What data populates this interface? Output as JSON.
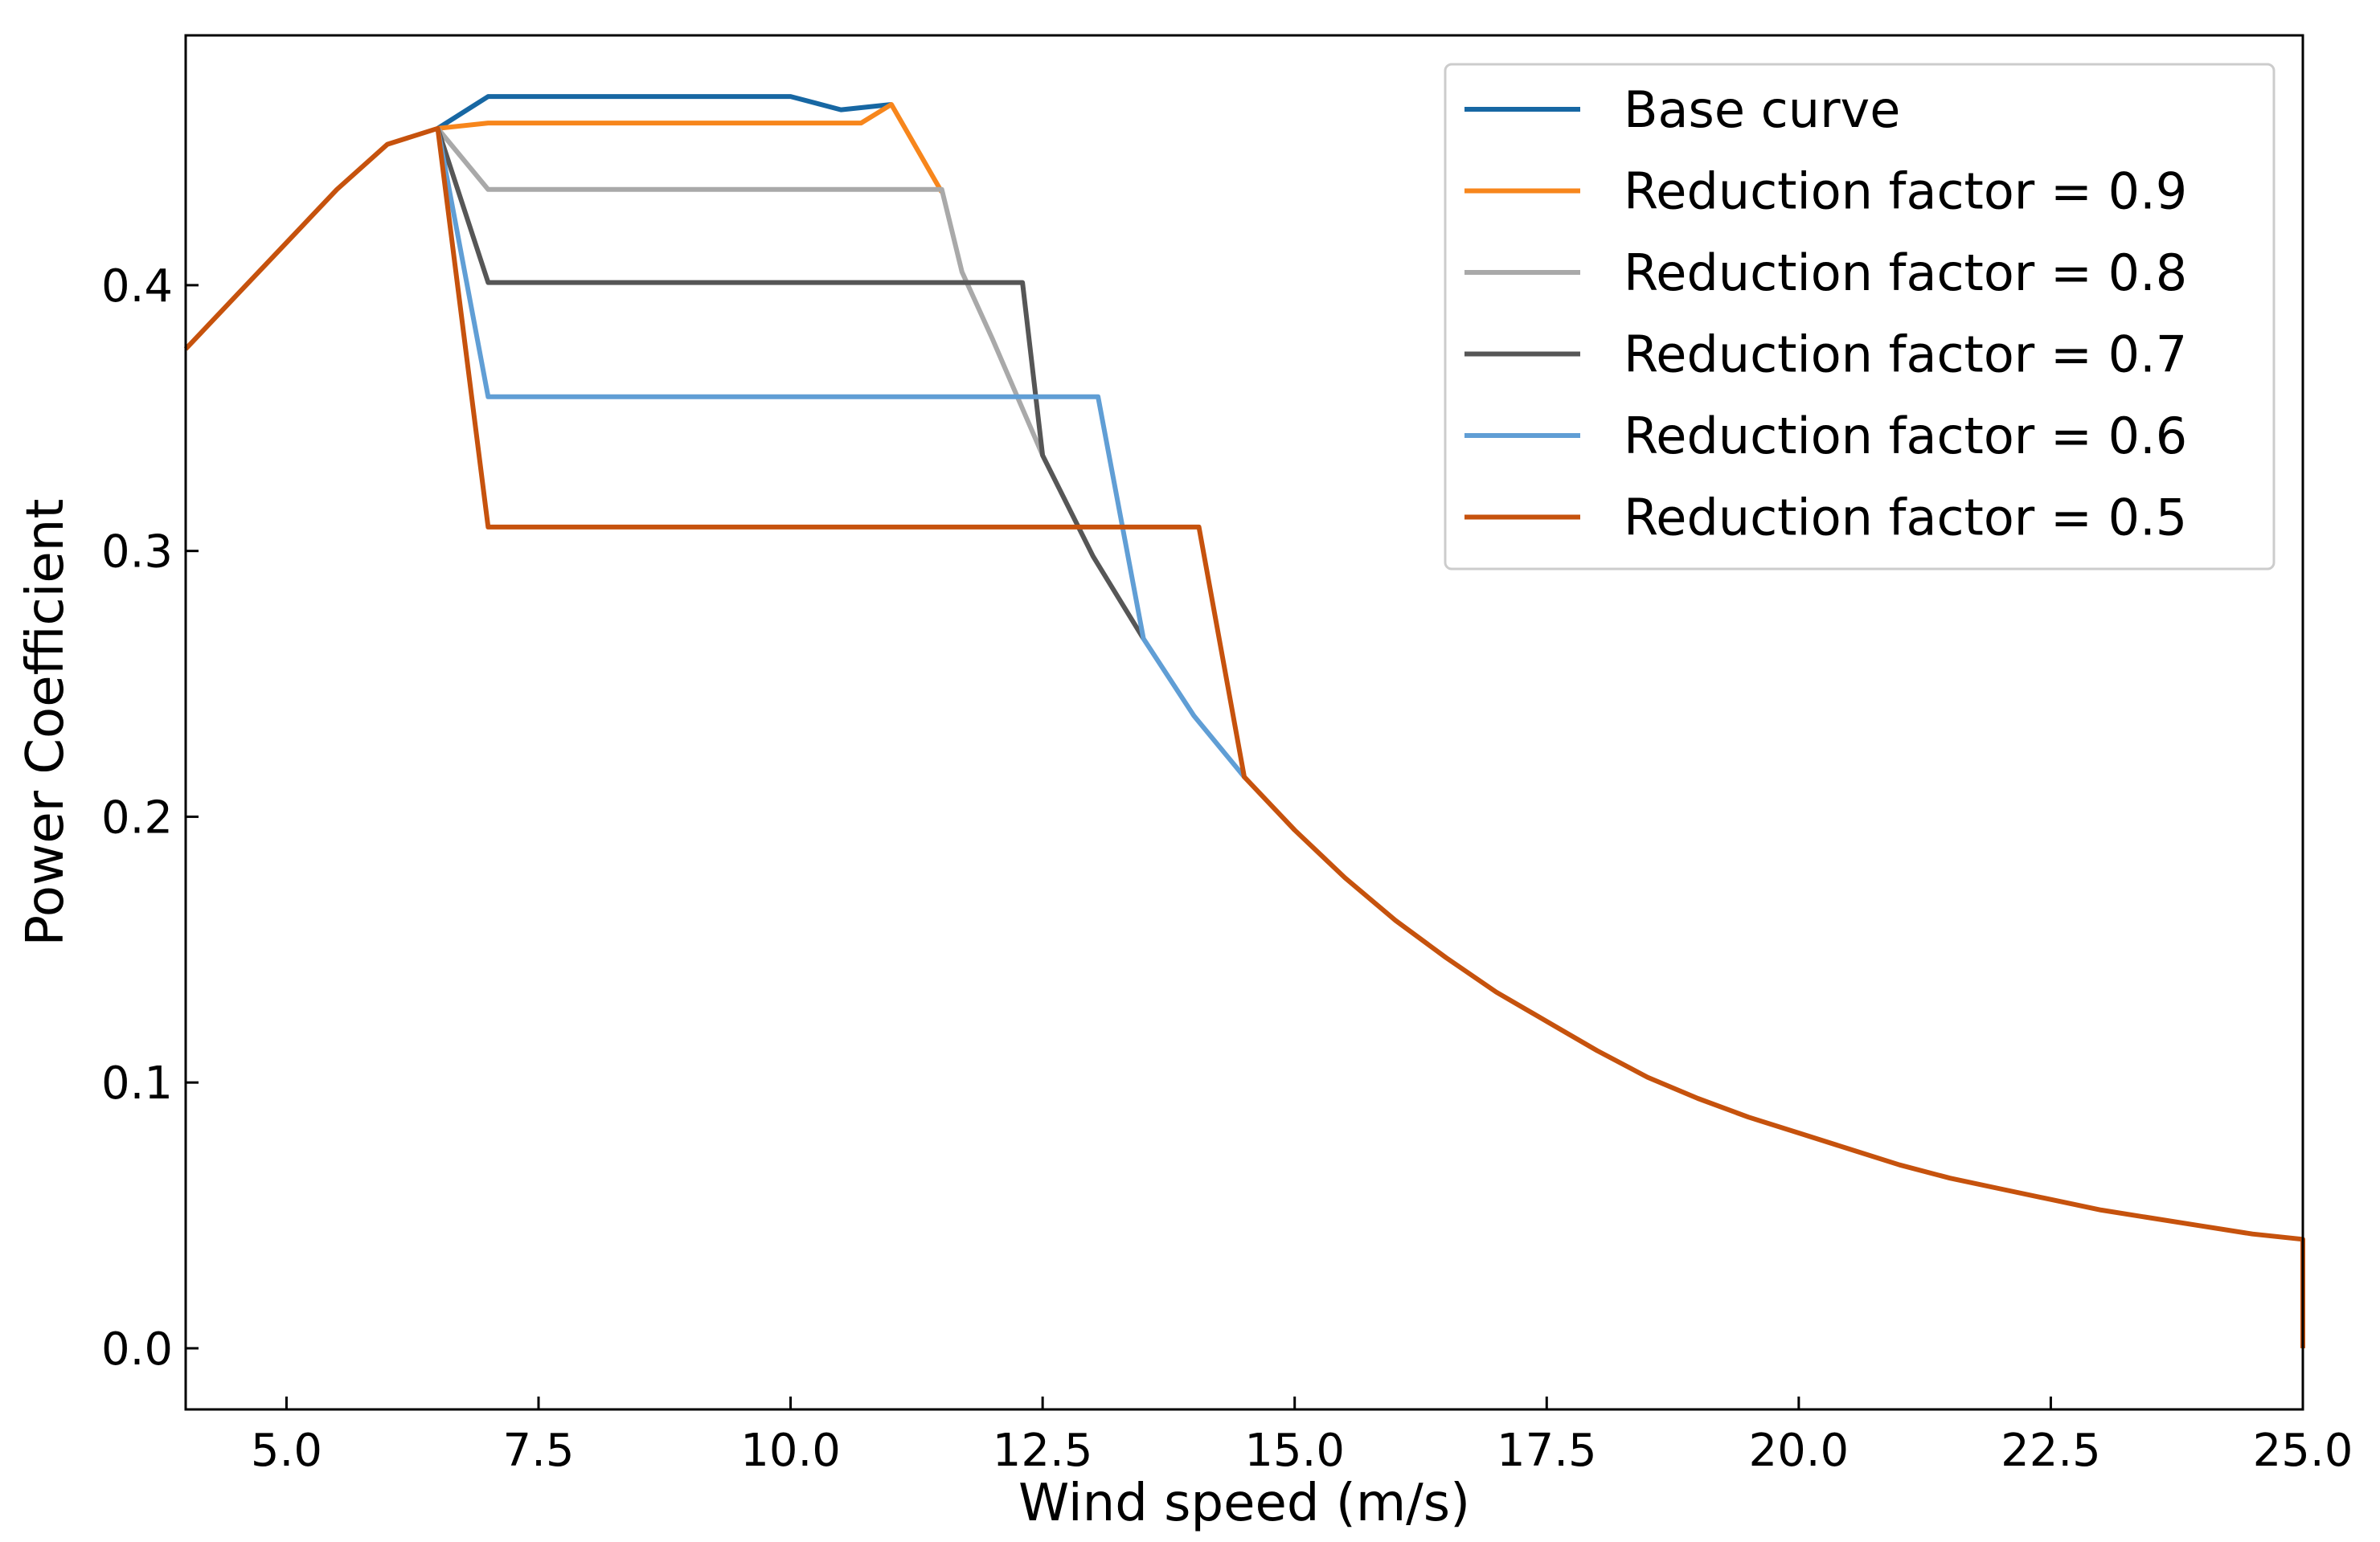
{
  "chart_data": {
    "type": "line",
    "title": "",
    "xlabel": "Wind speed (m/s)",
    "ylabel": "Power Coefficient",
    "xlim": [
      4.0,
      25.0
    ],
    "ylim": [
      -0.023,
      0.494
    ],
    "xticks": [
      5.0,
      7.5,
      10.0,
      12.5,
      15.0,
      17.5,
      20.0,
      22.5,
      25.0
    ],
    "xtick_labels": [
      "5.0",
      "7.5",
      "10.0",
      "12.5",
      "15.0",
      "17.5",
      "20.0",
      "22.5",
      "25.0"
    ],
    "yticks": [
      0.0,
      0.1,
      0.2,
      0.3,
      0.4
    ],
    "ytick_labels": [
      "0.0",
      "0.1",
      "0.2",
      "0.3",
      "0.4"
    ],
    "grid": false,
    "legend_position": "top-right",
    "series": [
      {
        "name": "Base curve",
        "color": "#1767a3",
        "points": [
          [
            6.5,
            0.459
          ],
          [
            7.0,
            0.471
          ],
          [
            10.0,
            0.471
          ],
          [
            10.5,
            0.466
          ],
          [
            11.0,
            0.468
          ]
        ]
      },
      {
        "name": "Reduction factor = 0.9",
        "color": "#f7861c",
        "points": [
          [
            6.5,
            0.459
          ],
          [
            7.0,
            0.461
          ],
          [
            10.7,
            0.461
          ],
          [
            11.0,
            0.468
          ],
          [
            11.5,
            0.435
          ]
        ]
      },
      {
        "name": "Reduction factor = 0.8",
        "color": "#a9a9a9",
        "points": [
          [
            6.5,
            0.459
          ],
          [
            7.0,
            0.436
          ],
          [
            11.5,
            0.436
          ],
          [
            11.7,
            0.405
          ],
          [
            12.0,
            0.38
          ],
          [
            12.5,
            0.336
          ]
        ]
      },
      {
        "name": "Reduction factor = 0.7",
        "color": "#565656",
        "points": [
          [
            6.5,
            0.459
          ],
          [
            7.0,
            0.401
          ],
          [
            12.3,
            0.401
          ],
          [
            12.5,
            0.336
          ],
          [
            13.0,
            0.298
          ],
          [
            13.5,
            0.267
          ]
        ]
      },
      {
        "name": "Reduction factor = 0.6",
        "color": "#609ed5",
        "points": [
          [
            6.5,
            0.459
          ],
          [
            7.0,
            0.358
          ],
          [
            13.05,
            0.358
          ],
          [
            13.5,
            0.267
          ],
          [
            14.0,
            0.238
          ],
          [
            14.5,
            0.215
          ]
        ]
      },
      {
        "name": "Reduction factor = 0.5",
        "color": "#c6520d",
        "points": [
          [
            4.0,
            0.376
          ],
          [
            4.5,
            0.396
          ],
          [
            5.0,
            0.416
          ],
          [
            5.5,
            0.436
          ],
          [
            6.0,
            0.453
          ],
          [
            6.5,
            0.459
          ],
          [
            7.0,
            0.309
          ],
          [
            14.05,
            0.309
          ],
          [
            14.5,
            0.215
          ],
          [
            15.0,
            0.195
          ],
          [
            15.5,
            0.177
          ],
          [
            16.0,
            0.161
          ],
          [
            16.5,
            0.147
          ],
          [
            17.0,
            0.134
          ],
          [
            17.5,
            0.123
          ],
          [
            18.0,
            0.112
          ],
          [
            18.5,
            0.102
          ],
          [
            19.0,
            0.094
          ],
          [
            19.5,
            0.087
          ],
          [
            20.0,
            0.081
          ],
          [
            20.5,
            0.075
          ],
          [
            21.0,
            0.069
          ],
          [
            21.5,
            0.064
          ],
          [
            22.0,
            0.06
          ],
          [
            22.5,
            0.056
          ],
          [
            23.0,
            0.052
          ],
          [
            23.5,
            0.049
          ],
          [
            24.0,
            0.046
          ],
          [
            24.5,
            0.043
          ],
          [
            25.0,
            0.041
          ],
          [
            25.0,
            0.0
          ]
        ]
      }
    ]
  }
}
